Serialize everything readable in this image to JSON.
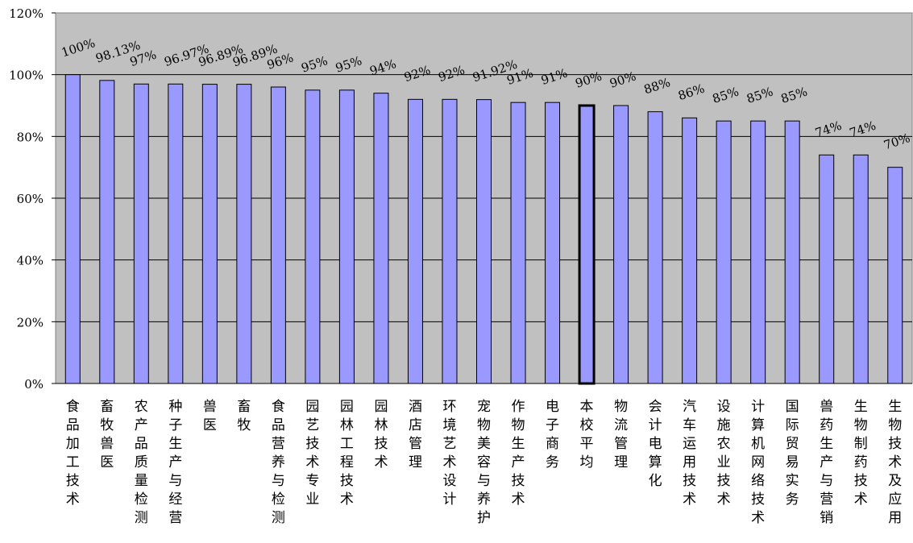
{
  "chart_data": {
    "type": "bar",
    "title": "",
    "xlabel": "",
    "ylabel": "",
    "ylim": [
      0,
      120
    ],
    "yticks": [
      "0%",
      "20%",
      "40%",
      "60%",
      "80%",
      "100%",
      "120%"
    ],
    "grid": true,
    "legend": "none",
    "plot_background": "#c0c0c0",
    "bar_color": "#9999ff",
    "highlight_category": "本校平均",
    "categories": [
      "食品加工技术",
      "畜牧兽医",
      "农产品质量检测",
      "种子生产与经营",
      "兽医",
      "畜牧",
      "食品营养与检测",
      "园艺技术专业",
      "园林工程技术",
      "园林技术",
      "酒店管理",
      "环境艺术设计",
      "宠物美容与养护",
      "作物生产技术",
      "电子商务",
      "本校平均",
      "物流管理",
      "会计电算化",
      "汽车运用技术",
      "设施农业技术",
      "计算机网络技术",
      "国际贸易实务",
      "兽药生产与营销",
      "生物制药技术",
      "生物技术及应用"
    ],
    "values": [
      100,
      98.13,
      96.97,
      96.97,
      96.89,
      96.89,
      96,
      95,
      95,
      94,
      92,
      92,
      91.92,
      91,
      91,
      90,
      90,
      88,
      86,
      85,
      85,
      85,
      74,
      74,
      70
    ],
    "data_labels": [
      "100%",
      "98.13%",
      "97%",
      "96.97%",
      "96.89%",
      "96.89%",
      "96%",
      "95%",
      "95%",
      "94%",
      "92%",
      "92%",
      "91.92%",
      "91%",
      "91%",
      "90%",
      "90%",
      "88%",
      "86%",
      "85%",
      "85%",
      "85%",
      "74%",
      "74%",
      "70%"
    ]
  }
}
